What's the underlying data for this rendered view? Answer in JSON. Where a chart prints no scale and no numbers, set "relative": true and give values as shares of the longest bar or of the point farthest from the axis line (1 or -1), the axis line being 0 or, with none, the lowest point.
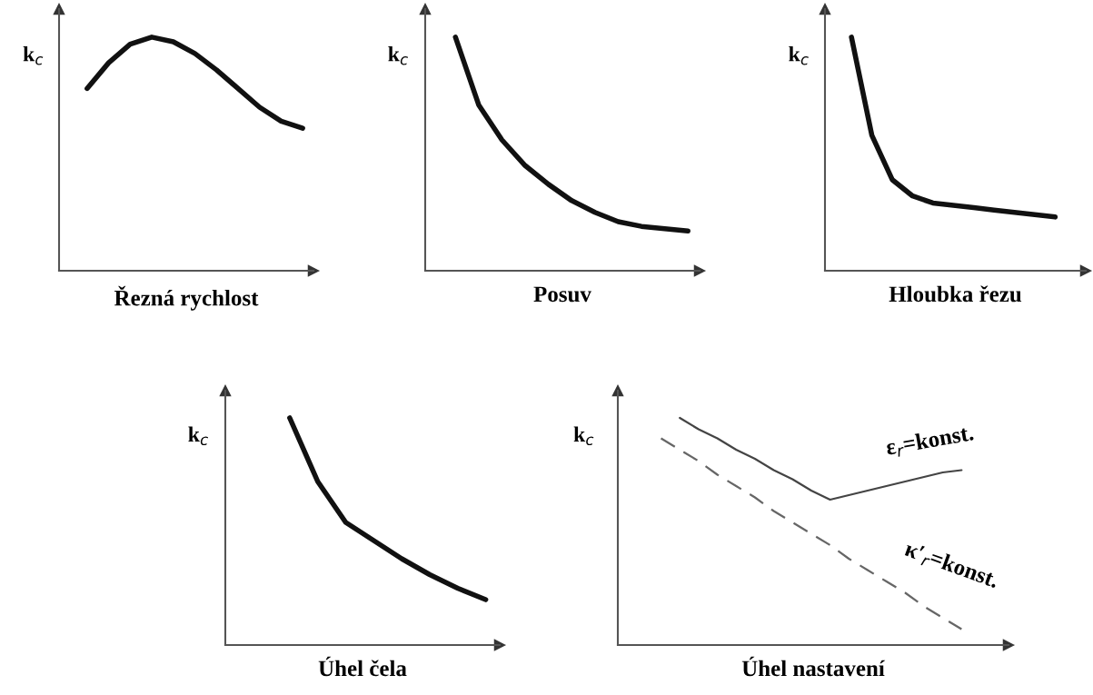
{
  "chart_data": [
    {
      "type": "line",
      "relative": true,
      "ylabel": "k$_{c}$",
      "xlabel": "Řezná rychlost",
      "tick_labels": false,
      "categories": [
        null,
        null,
        null,
        null,
        null,
        null,
        null,
        null,
        null,
        null,
        null,
        null
      ],
      "series": [
        {
          "color": "#111111",
          "line_style": "solid",
          "values": [
            null,
            0.78,
            0.89,
            0.97,
            1,
            0.98,
            0.93,
            0.86,
            0.78,
            0.7,
            0.64,
            0.61
          ]
        }
      ]
    },
    {
      "type": "line",
      "relative": true,
      "ylabel": "k$_{c}$",
      "xlabel": "Posuv",
      "tick_labels": false,
      "categories": [
        null,
        null,
        null,
        null,
        null,
        null,
        null,
        null,
        null,
        null,
        null,
        null
      ],
      "series": [
        {
          "color": "#111111",
          "line_style": "solid",
          "values": [
            null,
            1,
            0.71,
            0.56,
            0.45,
            0.37,
            0.3,
            0.25,
            0.21,
            0.19,
            0.18,
            0.17
          ]
        }
      ]
    },
    {
      "type": "line",
      "relative": true,
      "ylabel": "k$_{c}$",
      "xlabel": "Hloubka řezu",
      "tick_labels": false,
      "categories": [
        null,
        null,
        null,
        null,
        null,
        null,
        null,
        null,
        null,
        null,
        null,
        null,
        null
      ],
      "series": [
        {
          "color": "#111111",
          "line_style": "solid",
          "values": [
            null,
            1,
            0.58,
            0.39,
            0.32,
            0.29,
            0.28,
            0.27,
            0.26,
            0.25,
            0.24,
            0.23,
            null
          ]
        }
      ]
    },
    {
      "type": "line",
      "relative": true,
      "ylabel": "k$_{c}$",
      "xlabel": "Úhel čela",
      "tick_labels": false,
      "categories": [
        null,
        null,
        null,
        null,
        null,
        null,
        null,
        null,
        null,
        null
      ],
      "series": [
        {
          "color": "#111111",
          "line_style": "solid",
          "values": [
            null,
            null,
            1,
            0.72,
            0.54,
            0.46,
            0.38,
            0.31,
            0.25,
            0.2
          ]
        }
      ]
    },
    {
      "type": "line",
      "relative": true,
      "ylabel": "k$_{c}$",
      "xlabel": "Úhel nastavení",
      "tick_labels": false,
      "categories": [
        null,
        null,
        null,
        null,
        null,
        null,
        null,
        null,
        null,
        null,
        null,
        null,
        null,
        null,
        null,
        null,
        null,
        null,
        null,
        null,
        null
      ],
      "annotations": [
        "ε$_{r}$=konst.",
        "κ′$_{r}$=konst."
      ],
      "series": [
        {
          "color": "#444444",
          "line_style": "solid",
          "values": [
            null,
            null,
            null,
            1,
            0.95,
            0.91,
            0.86,
            0.82,
            0.77,
            0.73,
            0.68,
            0.64,
            0.66,
            0.68,
            0.7,
            0.72,
            0.74,
            0.76,
            0.77,
            null,
            null
          ]
        },
        {
          "color": "#666666",
          "line_style": "dashed",
          "values": [
            null,
            null,
            0.91,
            0.86,
            0.81,
            0.75,
            0.7,
            0.65,
            0.59,
            0.54,
            0.49,
            0.44,
            0.38,
            0.33,
            0.28,
            0.23,
            0.17,
            0.12,
            0.07,
            null,
            null
          ]
        }
      ]
    }
  ]
}
